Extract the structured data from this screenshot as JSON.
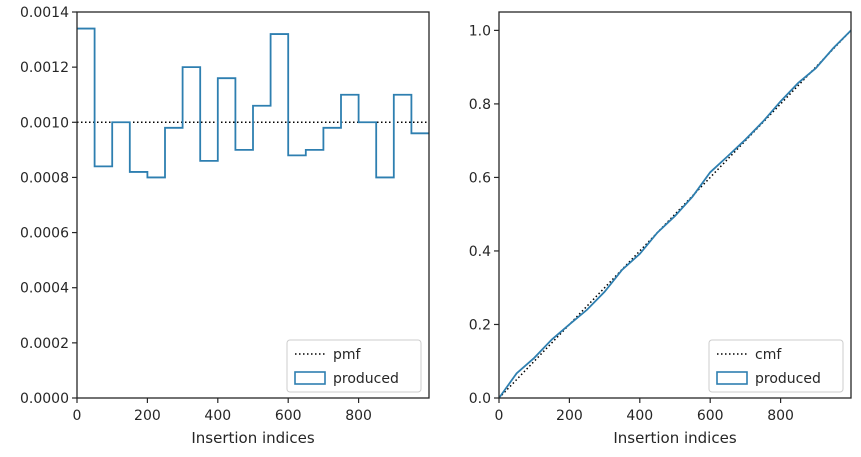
{
  "chart_data": [
    {
      "type": "line",
      "subtype": "step-histogram",
      "title": "",
      "xlabel": "Insertion indices",
      "ylabel": "",
      "xlim": [
        0,
        1000
      ],
      "ylim": [
        0,
        0.0014
      ],
      "xticks": [
        0,
        200,
        400,
        600,
        800
      ],
      "xtick_labels": [
        "0",
        "200",
        "400",
        "600",
        "800"
      ],
      "yticks": [
        0,
        0.0002,
        0.0004,
        0.0006,
        0.0008,
        0.001,
        0.0012,
        0.0014
      ],
      "ytick_labels": [
        "0.0000",
        "0.0002",
        "0.0004",
        "0.0006",
        "0.0008",
        "0.0010",
        "0.0012",
        "0.0014"
      ],
      "grid": false,
      "legend_position": "bottom-right",
      "series": [
        {
          "name": "pmf",
          "style": "dotted",
          "color": "#000000",
          "x": [
            0,
            1000
          ],
          "y": [
            0.001,
            0.001
          ]
        },
        {
          "name": "produced",
          "style": "step",
          "color": "#2e7fb0",
          "bin_edges": [
            0,
            50,
            100,
            150,
            200,
            250,
            300,
            350,
            400,
            450,
            500,
            550,
            600,
            650,
            700,
            750,
            800,
            850,
            900,
            950,
            1000
          ],
          "values": [
            0.00134,
            0.00084,
            0.001,
            0.00082,
            0.0008,
            0.00098,
            0.0012,
            0.00086,
            0.00116,
            0.0009,
            0.00106,
            0.00132,
            0.00088,
            0.0009,
            0.00098,
            0.0011,
            0.001,
            0.0008,
            0.0011,
            0.00096
          ]
        }
      ]
    },
    {
      "type": "line",
      "subtype": "cumulative",
      "title": "",
      "xlabel": "Insertion indices",
      "ylabel": "",
      "xlim": [
        0,
        1000
      ],
      "ylim": [
        0,
        1.05
      ],
      "xticks": [
        0,
        200,
        400,
        600,
        800
      ],
      "xtick_labels": [
        "0",
        "200",
        "400",
        "600",
        "800"
      ],
      "yticks": [
        0,
        0.2,
        0.4,
        0.6,
        0.8,
        1.0
      ],
      "ytick_labels": [
        "0.0",
        "0.2",
        "0.4",
        "0.6",
        "0.8",
        "1.0"
      ],
      "grid": false,
      "legend_position": "bottom-right",
      "series": [
        {
          "name": "cmf",
          "style": "dotted",
          "color": "#000000",
          "x": [
            0,
            1000
          ],
          "y": [
            0,
            1
          ]
        },
        {
          "name": "produced",
          "style": "solid",
          "color": "#2e7fb0",
          "x": [
            0,
            50,
            100,
            150,
            200,
            250,
            300,
            350,
            400,
            450,
            500,
            550,
            600,
            650,
            700,
            750,
            800,
            850,
            900,
            950,
            1000
          ],
          "y": [
            0,
            0.067,
            0.109,
            0.159,
            0.2,
            0.24,
            0.289,
            0.349,
            0.392,
            0.45,
            0.495,
            0.548,
            0.614,
            0.658,
            0.703,
            0.752,
            0.807,
            0.857,
            0.897,
            0.952,
            1.0
          ]
        }
      ]
    }
  ]
}
